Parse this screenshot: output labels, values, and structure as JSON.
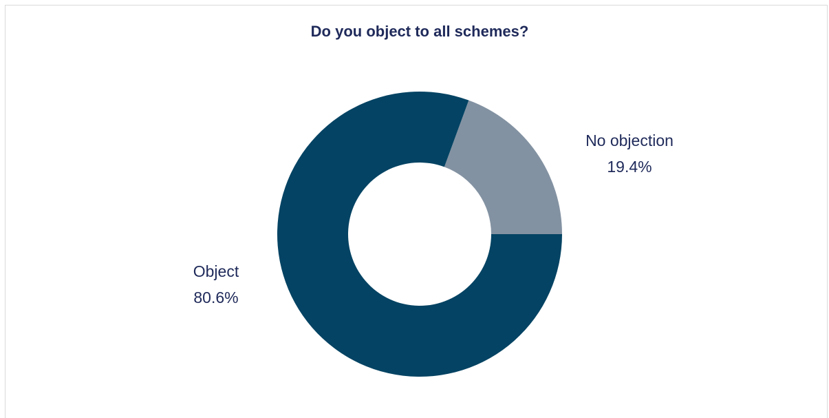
{
  "chart_data": {
    "type": "pie",
    "title": "Do you object to all schemes?",
    "slices": [
      {
        "label": "No objection",
        "value": 19.4,
        "value_label": "19.4%",
        "color": "#8392a2"
      },
      {
        "label": "Object",
        "value": 80.6,
        "value_label": "80.6%",
        "color": "#044363"
      }
    ],
    "donut": true,
    "legend": "none"
  }
}
